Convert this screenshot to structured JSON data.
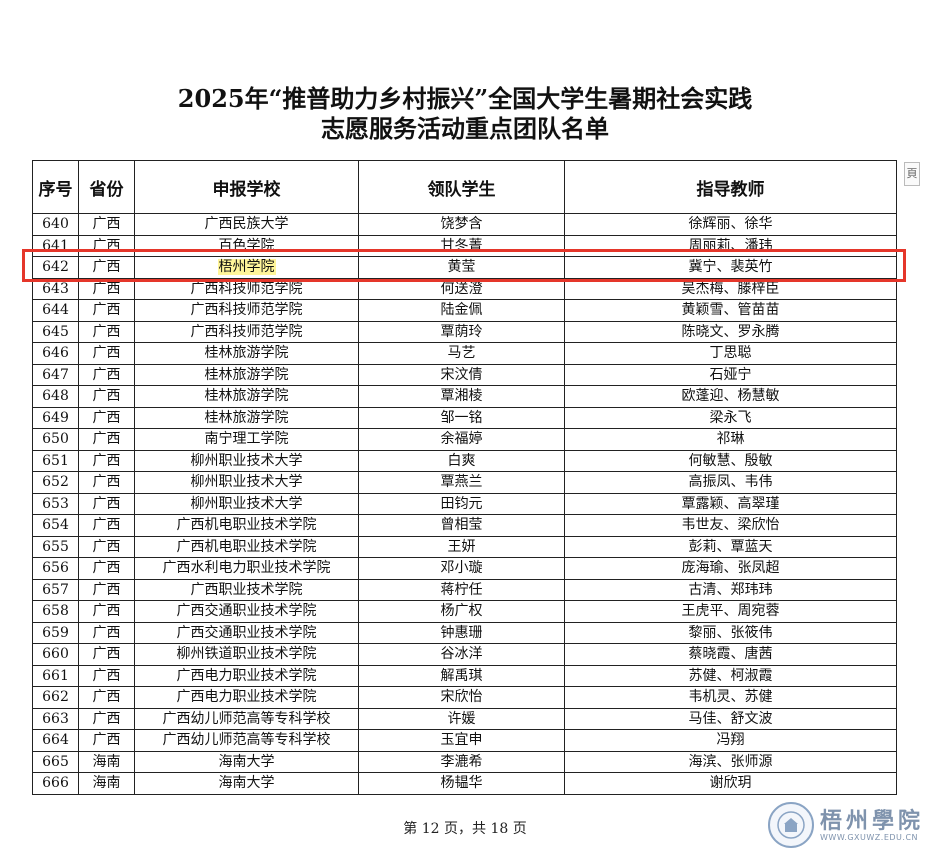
{
  "title": {
    "line1": "2025年“推普助力乡村振兴”全国大学生暑期社会实践",
    "line2": "志愿服务活动重点团队名单"
  },
  "side_mark": "頁",
  "table": {
    "headers": [
      "序号",
      "省份",
      "申报学校",
      "领队学生",
      "指导教师"
    ],
    "highlighted_seq": "642",
    "rows": [
      [
        "640",
        "广西",
        "广西民族大学",
        "饶梦含",
        "徐辉丽、徐华"
      ],
      [
        "641",
        "广西",
        "百色学院",
        "甘冬菁",
        "周丽莉、潘玮"
      ],
      [
        "642",
        "广西",
        "梧州学院",
        "黄莹",
        "冀宁、裴英竹"
      ],
      [
        "643",
        "广西",
        "广西科技师范学院",
        "何送澄",
        "吴杰梅、滕梓臣"
      ],
      [
        "644",
        "广西",
        "广西科技师范学院",
        "陆金佩",
        "黄颖雪、管苗苗"
      ],
      [
        "645",
        "广西",
        "广西科技师范学院",
        "覃荫玲",
        "陈晓文、罗永腾"
      ],
      [
        "646",
        "广西",
        "桂林旅游学院",
        "马艺",
        "丁思聪"
      ],
      [
        "647",
        "广西",
        "桂林旅游学院",
        "宋汶倩",
        "石娅宁"
      ],
      [
        "648",
        "广西",
        "桂林旅游学院",
        "覃湘棱",
        "欧蓬迎、杨慧敏"
      ],
      [
        "649",
        "广西",
        "桂林旅游学院",
        "邹一铭",
        "梁永飞"
      ],
      [
        "650",
        "广西",
        "南宁理工学院",
        "余福婷",
        "祁琳"
      ],
      [
        "651",
        "广西",
        "柳州职业技术大学",
        "白爽",
        "何敏慧、殷敏"
      ],
      [
        "652",
        "广西",
        "柳州职业技术大学",
        "覃燕兰",
        "高振凤、韦伟"
      ],
      [
        "653",
        "广西",
        "柳州职业技术大学",
        "田钧元",
        "覃露颖、高翠瑾"
      ],
      [
        "654",
        "广西",
        "广西机电职业技术学院",
        "曾相莹",
        "韦世友、梁欣怡"
      ],
      [
        "655",
        "广西",
        "广西机电职业技术学院",
        "王妍",
        "彭莉、覃蓝天"
      ],
      [
        "656",
        "广西",
        "广西水利电力职业技术学院",
        "邓小璇",
        "庞海瑜、张凤超"
      ],
      [
        "657",
        "广西",
        "广西职业技术学院",
        "蒋柠任",
        "古清、郑玮玮"
      ],
      [
        "658",
        "广西",
        "广西交通职业技术学院",
        "杨广权",
        "王虎平、周宛蓉"
      ],
      [
        "659",
        "广西",
        "广西交通职业技术学院",
        "钟惠珊",
        "黎丽、张筱伟"
      ],
      [
        "660",
        "广西",
        "柳州铁道职业技术学院",
        "谷冰洋",
        "蔡晓霞、唐茜"
      ],
      [
        "661",
        "广西",
        "广西电力职业技术学院",
        "解禹琪",
        "苏健、柯淑霞"
      ],
      [
        "662",
        "广西",
        "广西电力职业技术学院",
        "宋欣怡",
        "韦机灵、苏健"
      ],
      [
        "663",
        "广西",
        "广西幼儿师范高等专科学校",
        "许媛",
        "马佳、舒文波"
      ],
      [
        "664",
        "广西",
        "广西幼儿师范高等专科学校",
        "玉宜申",
        "冯翔"
      ],
      [
        "665",
        "海南",
        "海南大学",
        "李漉希",
        "海滨、张师源"
      ],
      [
        "666",
        "海南",
        "海南大学",
        "杨韫华",
        "谢欣玥"
      ]
    ]
  },
  "footer": "第 12 页，共 18 页",
  "watermark": {
    "name": "梧州學院",
    "url": "WWW.GXUWZ.EDU.CN"
  },
  "colors": {
    "highlight_box": "#e5362a",
    "text_highlight": "#fff59a"
  }
}
